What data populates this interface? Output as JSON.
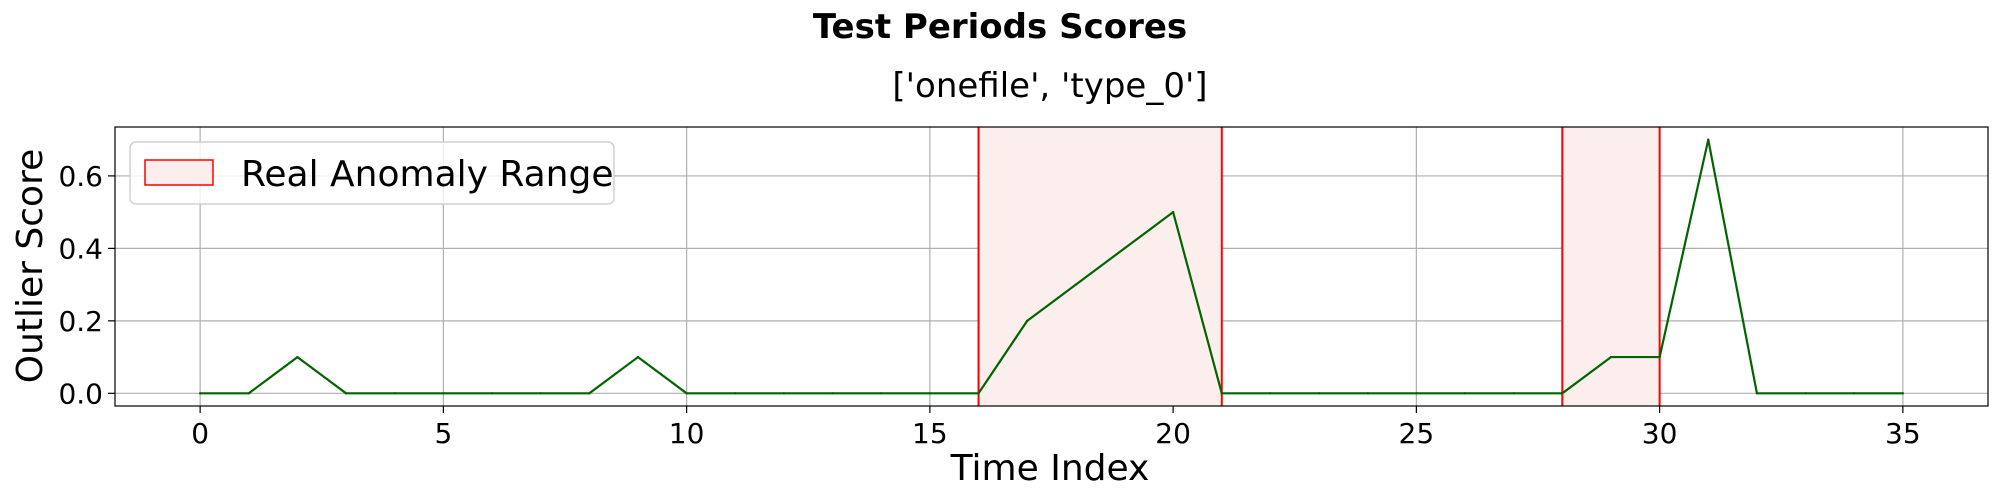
{
  "chart_data": {
    "type": "line",
    "title": "Test Periods Scores",
    "subtitle": "['onefile', 'type_0']",
    "xlabel": "Time Index",
    "ylabel": "Outlier Score",
    "xlim": [
      -1.75,
      36.75
    ],
    "ylim": [
      -0.035,
      0.735
    ],
    "xticks": [
      0,
      5,
      10,
      15,
      20,
      25,
      30,
      35
    ],
    "yticks": [
      0.0,
      0.2,
      0.4,
      0.6
    ],
    "xtick_labels": [
      "0",
      "5",
      "10",
      "15",
      "20",
      "25",
      "30",
      "35"
    ],
    "ytick_labels": [
      "0.0",
      "0.2",
      "0.4",
      "0.6"
    ],
    "grid": true,
    "legend_position": "top-left",
    "series": [
      {
        "x": [
          0,
          1,
          2,
          3,
          4,
          5,
          6,
          7,
          8,
          9,
          10,
          11,
          12,
          13,
          14,
          15,
          16,
          17,
          18,
          19,
          20,
          21,
          22,
          23,
          24,
          25,
          26,
          27,
          28,
          29,
          30,
          31,
          32,
          33,
          34,
          35
        ],
        "y": [
          0,
          0,
          0.1,
          0,
          0,
          0,
          0,
          0,
          0,
          0.1,
          0,
          0,
          0,
          0,
          0,
          0,
          0,
          0.2,
          0.3,
          0.4,
          0.5,
          0,
          0,
          0,
          0,
          0,
          0,
          0,
          0,
          0.1,
          0.1,
          0.7,
          0,
          0,
          0,
          0
        ],
        "color": "#006400"
      }
    ],
    "anomaly_ranges": [
      {
        "start": 16,
        "end": 21
      },
      {
        "start": 28,
        "end": 30
      }
    ],
    "legend": {
      "label": "Real Anomaly Range",
      "edge_color": "#ff0000",
      "face_color": "#fdeeee"
    },
    "colors": {
      "line": "#006400",
      "range_edge": "#ff0000",
      "range_fill": "#fdeeee",
      "grid": "#b0b0b0"
    }
  }
}
